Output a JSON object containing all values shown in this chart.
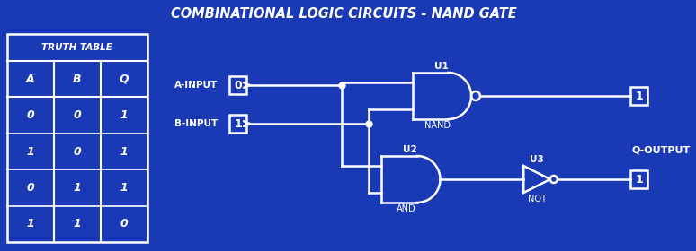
{
  "title": "COMBINATIONAL LOGIC CIRCUITS - NAND GATE",
  "bg_color": "#1a3ab5",
  "line_color": "#ffffff",
  "text_color": "#ffffff",
  "truth_table": {
    "header": [
      "A",
      "B",
      "Q"
    ],
    "rows": [
      [
        "0",
        "0",
        "1"
      ],
      [
        "1",
        "0",
        "1"
      ],
      [
        "0",
        "1",
        "1"
      ],
      [
        "1",
        "1",
        "0"
      ]
    ]
  },
  "a_input_val": "0",
  "b_input_val": "1",
  "nand_output_val": "1",
  "not_output_val": "1",
  "labels": {
    "a_input": "A-INPUT",
    "b_input": "B-INPUT",
    "q_output": "Q-OUTPUT",
    "u1": "U1",
    "u2": "U2",
    "u3": "U3",
    "nand": "NAND",
    "and": "AND",
    "not": "NOT"
  }
}
